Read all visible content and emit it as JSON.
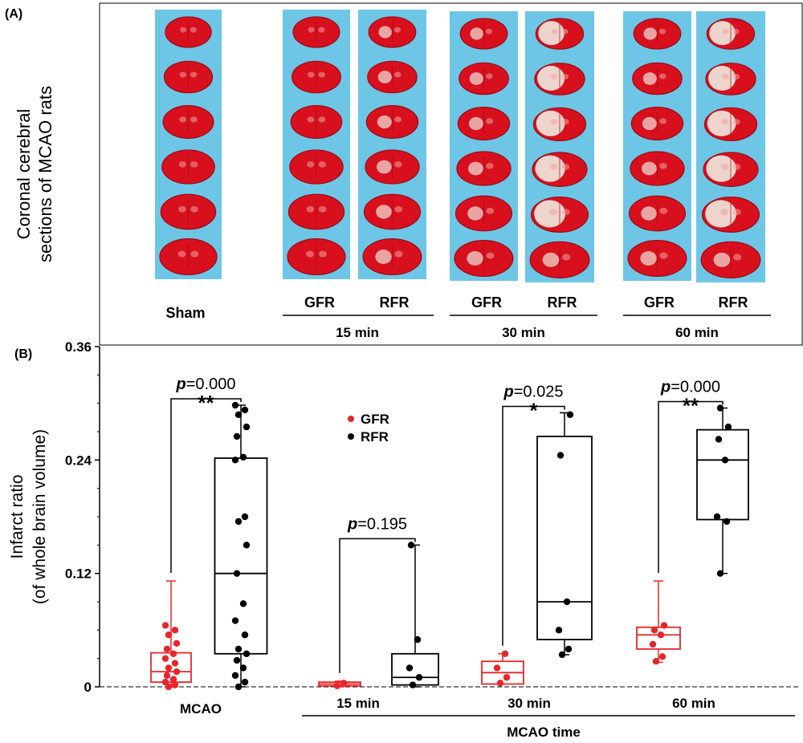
{
  "panel_a": {
    "label": "(A)",
    "ylabel_lines": [
      "Coronal cerebral",
      "sections of MCAO rats"
    ],
    "sham_label": "Sham",
    "columns": [
      {
        "id": "sham",
        "label": "",
        "slices": 6
      },
      {
        "id": "gfr15",
        "label": "GFR",
        "slices": 6
      },
      {
        "id": "rfr15",
        "label": "RFR",
        "slices": 6
      },
      {
        "id": "gfr30",
        "label": "GFR",
        "slices": 6
      },
      {
        "id": "rfr30",
        "label": "RFR",
        "slices": 6
      },
      {
        "id": "gfr60",
        "label": "GFR",
        "slices": 6
      },
      {
        "id": "rfr60",
        "label": "RFR",
        "slices": 6
      }
    ],
    "groups": [
      {
        "label": "15 min"
      },
      {
        "label": "30 min"
      },
      {
        "label": "60 min"
      }
    ]
  },
  "colors": {
    "panel_bg": "#6ec6e6",
    "tissue": "#d8101e",
    "tissue_dark": "#9a0a12",
    "infarct": "#efe6dc",
    "gfr": "#e8262a",
    "rfr": "#000000"
  },
  "chart_data": {
    "type": "box",
    "panel_label": "(B)",
    "ylabel_lines": [
      "Infarct ratio",
      "(of whole brain volume)"
    ],
    "xlabel": "MCAO time",
    "ylim": [
      0,
      0.36
    ],
    "yticks": [
      "0",
      "0.12",
      "0.24",
      "0.36"
    ],
    "legend": [
      {
        "name": "GFR",
        "color": "#e8262a"
      },
      {
        "name": "RFR",
        "color": "#000000"
      }
    ],
    "categories": [
      "MCAO",
      "15 min",
      "30 min",
      "60 min"
    ],
    "groups": [
      {
        "category": "MCAO",
        "p_prefix": "p",
        "p_value": "=0.000",
        "stars": "**",
        "boxes": [
          {
            "series": "GFR",
            "min": 0,
            "q1": 0.005,
            "median": 0.016,
            "q3": 0.036,
            "max": 0.112,
            "points": [
              0,
              0.002,
              0.005,
              0.008,
              0.012,
              0.016,
              0.02,
              0.025,
              0.03,
              0.035,
              0.04,
              0.046,
              0.055,
              0.06,
              0.065
            ]
          },
          {
            "series": "RFR",
            "min": 0,
            "q1": 0.035,
            "median": 0.12,
            "q3": 0.242,
            "max": 0.298,
            "points": [
              0,
              0.005,
              0.012,
              0.02,
              0.028,
              0.035,
              0.04,
              0.055,
              0.07,
              0.088,
              0.12,
              0.15,
              0.175,
              0.18,
              0.24,
              0.243,
              0.265,
              0.275,
              0.288,
              0.293,
              0.298
            ]
          }
        ]
      },
      {
        "category": "15 min",
        "p_prefix": "p",
        "p_value": "=0.195",
        "stars": "",
        "boxes": [
          {
            "series": "GFR",
            "min": 0,
            "q1": 0.001,
            "median": 0.003,
            "q3": 0.005,
            "max": 0.006,
            "points": [
              0.001,
              0.004
            ]
          },
          {
            "series": "RFR",
            "min": 0,
            "q1": 0.002,
            "median": 0.01,
            "q3": 0.035,
            "max": 0.15,
            "points": [
              0.002,
              0.01,
              0.02,
              0.05,
              0.15
            ]
          }
        ]
      },
      {
        "category": "30 min",
        "p_prefix": "p",
        "p_value": "=0.025",
        "stars": "*",
        "boxes": [
          {
            "series": "GFR",
            "min": 0.003,
            "q1": 0.003,
            "median": 0.015,
            "q3": 0.027,
            "max": 0.035,
            "points": [
              0.004,
              0.01,
              0.02,
              0.035
            ]
          },
          {
            "series": "RFR",
            "min": 0.034,
            "q1": 0.05,
            "median": 0.09,
            "q3": 0.265,
            "max": 0.29,
            "points": [
              0.034,
              0.04,
              0.06,
              0.09,
              0.245,
              0.288
            ]
          }
        ]
      },
      {
        "category": "60 min",
        "p_prefix": "p",
        "p_value": "=0.000",
        "stars": "**",
        "boxes": [
          {
            "series": "GFR",
            "min": 0.026,
            "q1": 0.04,
            "median": 0.055,
            "q3": 0.063,
            "max": 0.112,
            "points": [
              0.027,
              0.032,
              0.045,
              0.055,
              0.06,
              0.065
            ]
          },
          {
            "series": "RFR",
            "min": 0.12,
            "q1": 0.177,
            "median": 0.24,
            "q3": 0.272,
            "max": 0.295,
            "points": [
              0.12,
              0.175,
              0.18,
              0.24,
              0.262,
              0.275,
              0.295
            ]
          }
        ]
      }
    ]
  }
}
